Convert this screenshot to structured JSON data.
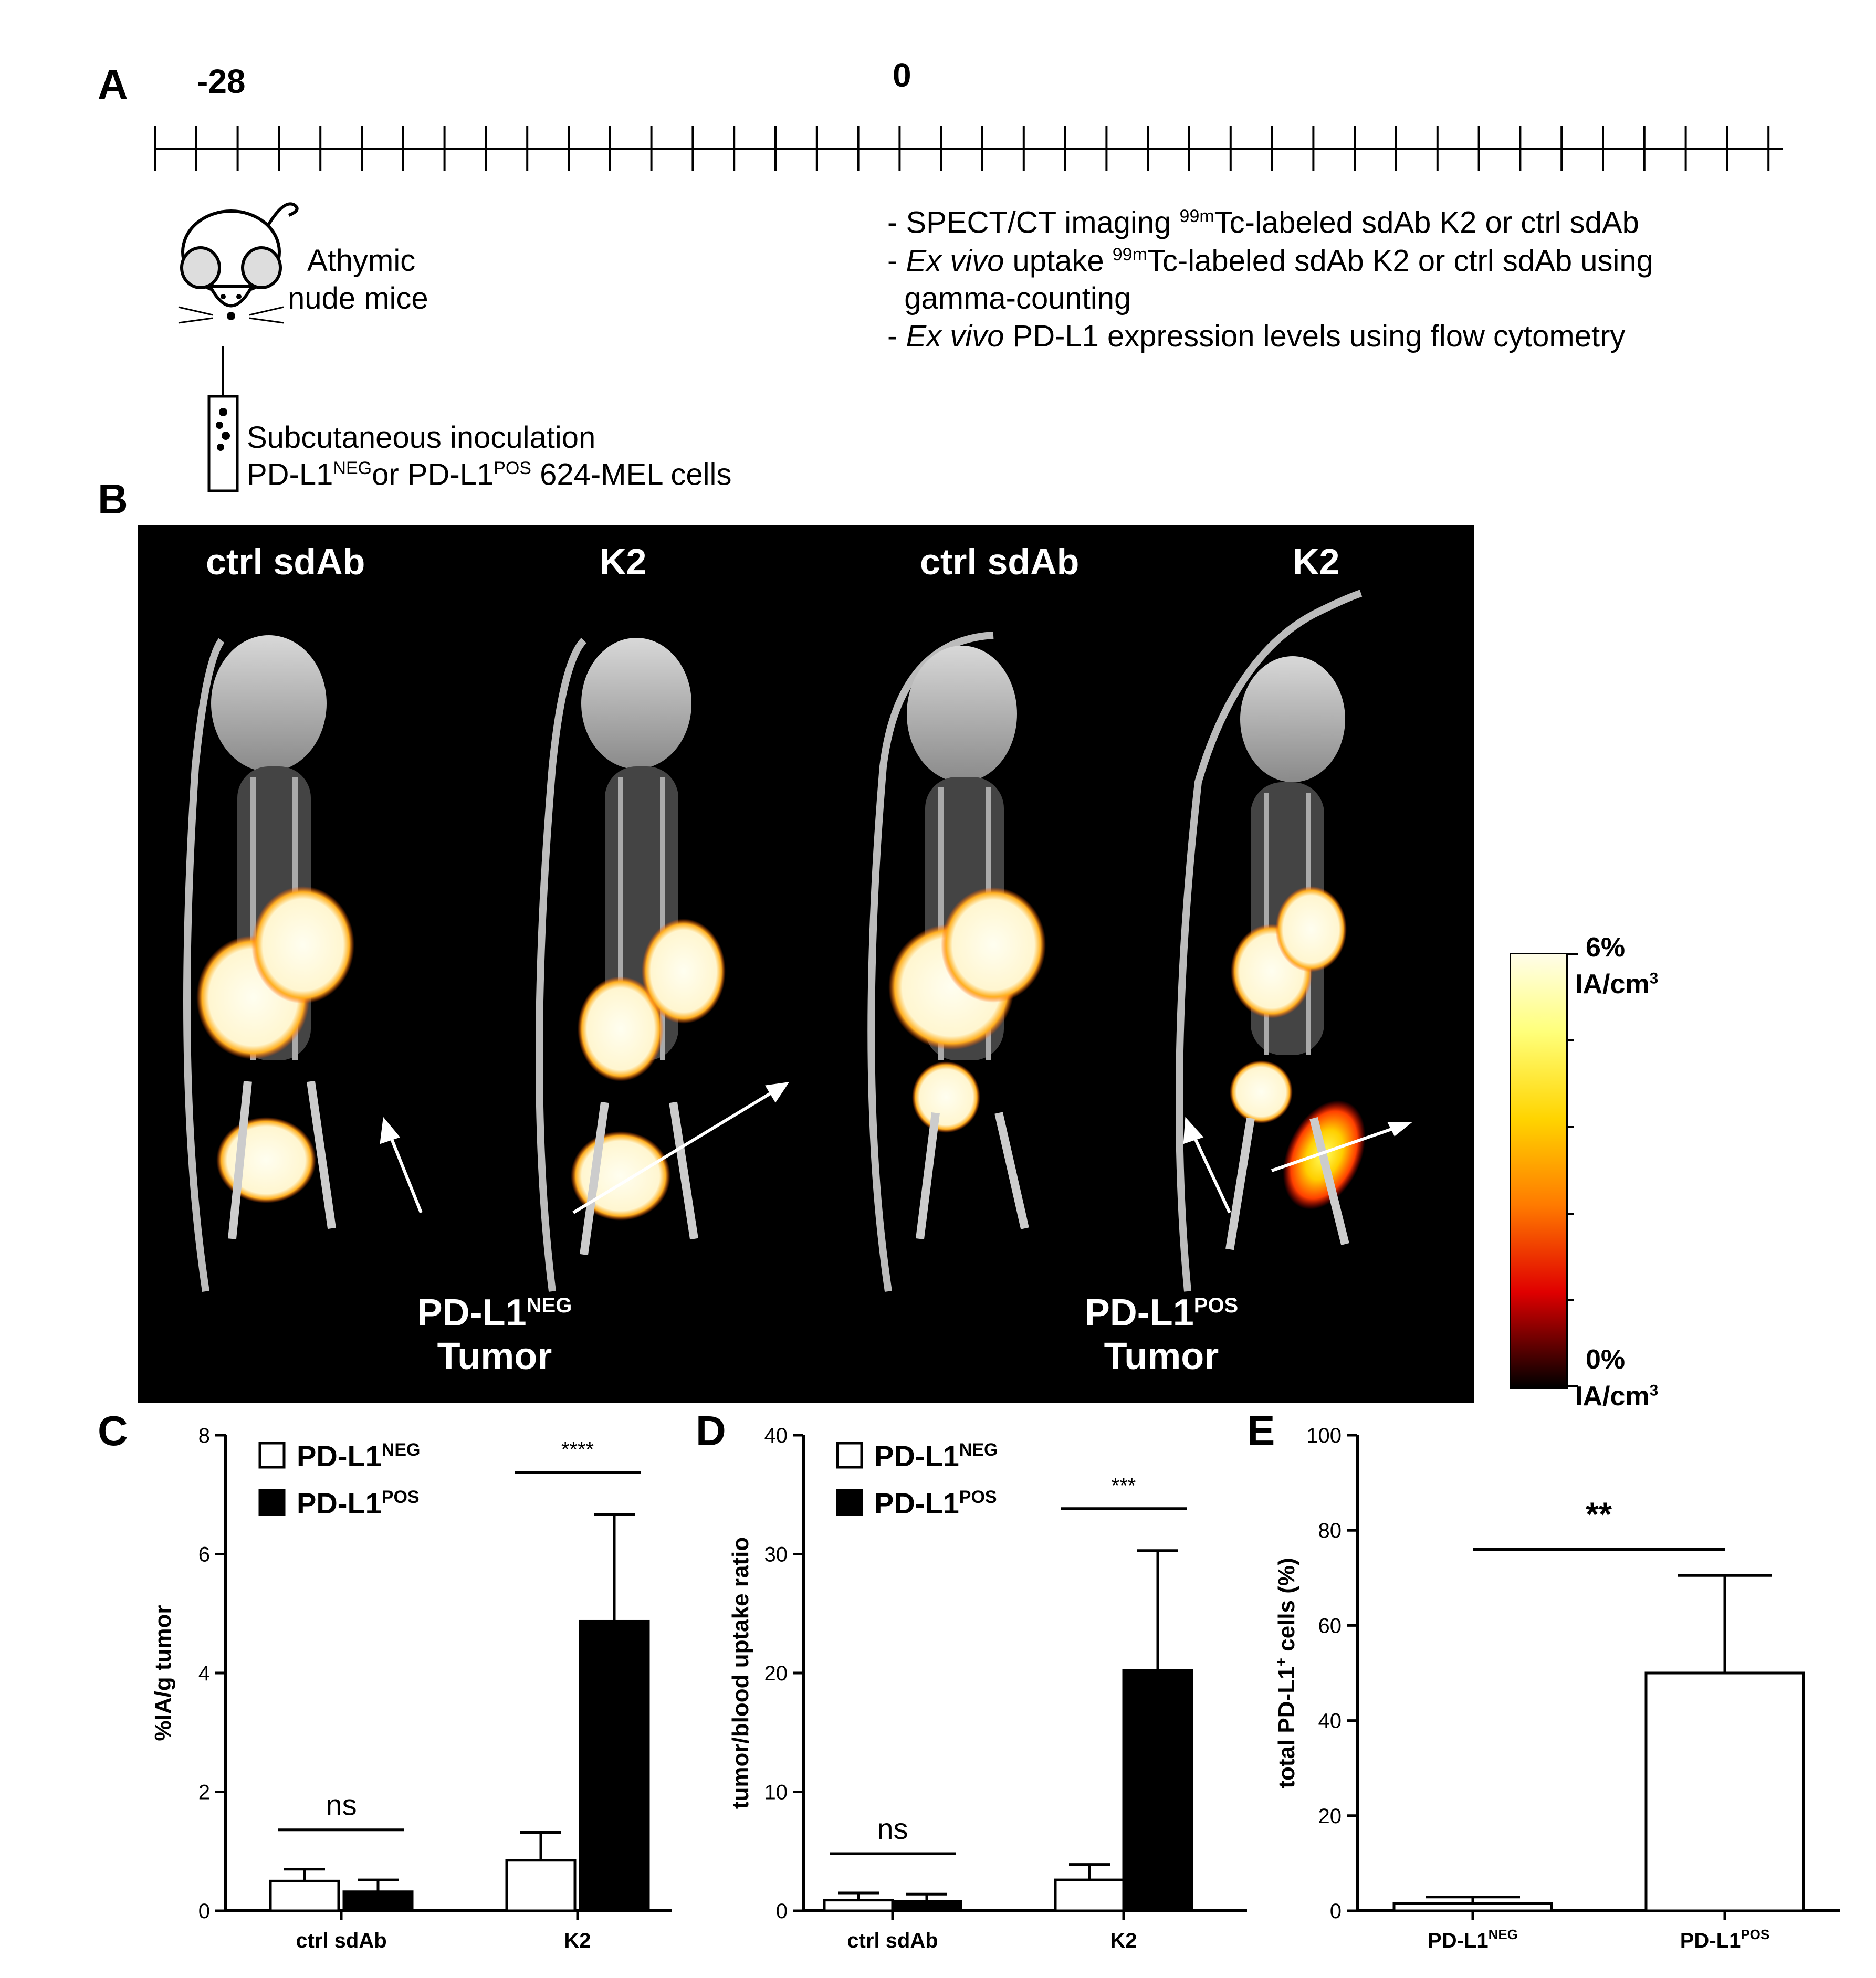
{
  "panel_a": {
    "label": "A",
    "timeline_labels": [
      "-28",
      "0"
    ],
    "mouse_text": [
      "Athymic",
      "nude mice"
    ],
    "inoculation_text": [
      "Subcutaneous inoculation",
      "PD-L1",
      "NEG",
      "or PD-L1",
      "POS",
      " 624-MEL cells"
    ],
    "bullets": [
      {
        "prefix": "- ",
        "pre": "SPECT/CT imaging ",
        "sup": "99m",
        "text": "Tc-labeled sdAb K2 or ctrl sdAb"
      },
      {
        "prefix": "- ",
        "italic": "Ex vivo",
        "pre": " uptake ",
        "sup": "99m",
        "text": "Tc-labeled sdAb K2 or ctrl sdAb using"
      },
      {
        "prefix": "  ",
        "pre": "gamma-counting"
      },
      {
        "prefix": "- ",
        "italic": "Ex vivo",
        "pre": " PD-L1 expression levels using flow cytometry"
      }
    ]
  },
  "panel_b": {
    "label": "B",
    "column_titles": [
      "ctrl sdAb",
      "K2",
      "ctrl sdAb",
      "K2"
    ],
    "tumor_labels": [
      {
        "main": "PD-L1",
        "sup": "NEG",
        "line2": "Tumor"
      },
      {
        "main": "PD-L1",
        "sup": "POS",
        "line2": "Tumor"
      }
    ],
    "colorbar": {
      "top": "6%",
      "top_unit": "IA/cm",
      "bottom": "0%",
      "bottom_unit": "IA/cm",
      "unit_sup": "3"
    }
  },
  "legend": {
    "neg": "PD-L1",
    "neg_sup": "NEG",
    "pos": "PD-L1",
    "pos_sup": "POS"
  },
  "colors": {
    "neg_fill": "#ffffff",
    "pos_fill": "#000000",
    "axis": "#000000"
  },
  "chart_data": [
    {
      "panel": "C",
      "type": "bar",
      "categories": [
        "ctrl sdAb",
        "K2"
      ],
      "ylabel": "%IA/g tumor",
      "ylim": [
        0,
        8
      ],
      "yticks": [
        0,
        2,
        4,
        6,
        8
      ],
      "series": [
        {
          "name": "PD-L1NEG",
          "values": [
            0.5,
            0.85
          ],
          "errors": [
            0.2,
            0.47
          ]
        },
        {
          "name": "PD-L1POS",
          "values": [
            0.32,
            4.87
          ],
          "errors": [
            0.2,
            1.8
          ]
        }
      ],
      "annotations": [
        {
          "text": "ns",
          "category": 0
        },
        {
          "text": "****",
          "category": 1
        }
      ],
      "legend_position": "top-left"
    },
    {
      "panel": "D",
      "type": "bar",
      "categories": [
        "ctrl sdAb",
        "K2"
      ],
      "ylabel": "tumor/blood uptake ratio",
      "ylim": [
        0,
        40
      ],
      "yticks": [
        0,
        10,
        20,
        30,
        40
      ],
      "series": [
        {
          "name": "PD-L1NEG",
          "values": [
            0.9,
            2.6
          ],
          "errors": [
            0.6,
            1.3
          ]
        },
        {
          "name": "PD-L1POS",
          "values": [
            0.8,
            20.2
          ],
          "errors": [
            0.6,
            10.1
          ]
        }
      ],
      "annotations": [
        {
          "text": "ns",
          "category": 0
        },
        {
          "text": "***",
          "category": 1
        }
      ],
      "legend_position": "top-left"
    },
    {
      "panel": "E",
      "type": "bar",
      "categories": [
        "PD-L1NEG",
        "PD-L1POS"
      ],
      "category_parts": [
        [
          "PD-L1",
          "NEG"
        ],
        [
          "PD-L1",
          "POS"
        ]
      ],
      "ylabel": "total PD-L1+ cells (%)",
      "ylabel_parts": [
        "total PD-L1",
        "+",
        " cells (%)"
      ],
      "ylim": [
        0,
        100
      ],
      "yticks": [
        0,
        20,
        40,
        60,
        80,
        100
      ],
      "values": [
        1.6,
        50
      ],
      "errors": [
        1.3,
        20.5
      ],
      "annotations": [
        {
          "text": "**",
          "between": [
            0,
            1
          ]
        }
      ]
    }
  ]
}
